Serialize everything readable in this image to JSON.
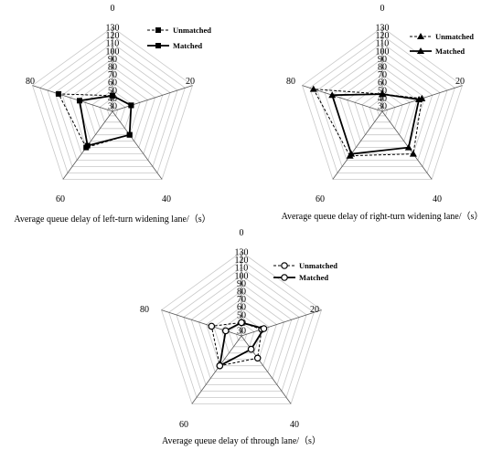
{
  "chart_data": [
    {
      "type": "radar",
      "caption": "Average queue delay of left-turn widening lane/（s）",
      "axes": [
        "0",
        "20",
        "40",
        "60",
        "80"
      ],
      "rlim": [
        30,
        130
      ],
      "rticks": [
        "30",
        "40",
        "50",
        "60",
        "70",
        "80",
        "90",
        "100",
        "110",
        "120",
        "130"
      ],
      "marker": "square",
      "legend_position": "top-right",
      "series": [
        {
          "name": "Unmatched",
          "values": [
            43,
            48,
            60,
            80,
            95
          ]
        },
        {
          "name": "Matched",
          "values": [
            43,
            48,
            60,
            77,
            67
          ]
        }
      ]
    },
    {
      "type": "radar",
      "caption": "Average queue delay of right-turn widening lane/（s）",
      "axes": [
        "0",
        "20",
        "40",
        "60",
        "80"
      ],
      "rlim": [
        30,
        130
      ],
      "rticks": [
        "30",
        "40",
        "50",
        "60",
        "70",
        "80",
        "90",
        "100",
        "110",
        "120",
        "130"
      ],
      "marker": "triangle",
      "legend_position": "top-right",
      "series": [
        {
          "name": "Unmatched",
          "values": [
            45,
            76,
            90,
            93,
            115
          ]
        },
        {
          "name": "Matched",
          "values": [
            45,
            72,
            80,
            90,
            90
          ]
        }
      ]
    },
    {
      "type": "radar",
      "caption": "Average queue delay of through lane/（s）",
      "axes": [
        "0",
        "20",
        "40",
        "60",
        "80"
      ],
      "rlim": [
        30,
        130
      ],
      "rticks": [
        "30",
        "40",
        "50",
        "60",
        "70",
        "80",
        "90",
        "100",
        "110",
        "120",
        "130"
      ],
      "marker": "circle",
      "legend_position": "top-right",
      "series": [
        {
          "name": "Unmatched",
          "values": [
            40,
            50,
            58,
            70,
            63
          ]
        },
        {
          "name": "Matched",
          "values": [
            40,
            53,
            44,
            70,
            44
          ]
        }
      ]
    }
  ]
}
